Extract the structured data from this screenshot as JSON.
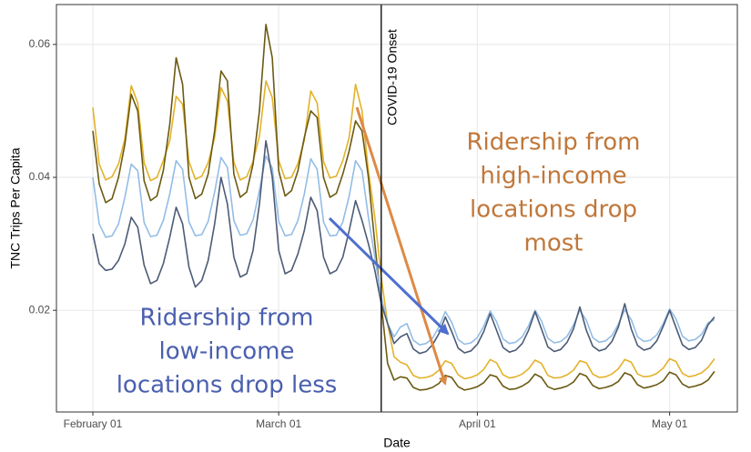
{
  "chart_data": {
    "type": "line",
    "x_label": "Date",
    "y_label": "TNC Trips Per Capita",
    "categories": [
      "February 01",
      "February 02",
      "February 03",
      "February 04",
      "February 05",
      "February 06",
      "February 07",
      "February 08",
      "February 09",
      "February 10",
      "February 11",
      "February 12",
      "February 13",
      "February 14",
      "February 15",
      "February 16",
      "February 17",
      "February 18",
      "February 19",
      "February 20",
      "February 21",
      "February 22",
      "February 23",
      "February 24",
      "February 25",
      "February 26",
      "February 27",
      "February 28",
      "February 29",
      "March 01",
      "March 02",
      "March 03",
      "March 04",
      "March 05",
      "March 06",
      "March 07",
      "March 08",
      "March 09",
      "March 10",
      "March 11",
      "March 12",
      "March 13",
      "March 14",
      "March 15",
      "March 16",
      "March 17",
      "March 18",
      "March 19",
      "March 20",
      "March 21",
      "March 22",
      "March 23",
      "March 24",
      "March 25",
      "March 26",
      "March 27",
      "March 28",
      "March 29",
      "March 30",
      "March 31",
      "April 01",
      "April 02",
      "April 03",
      "April 04",
      "April 05",
      "April 06",
      "April 07",
      "April 08",
      "April 09",
      "April 10",
      "April 11",
      "April 12",
      "April 13",
      "April 14",
      "April 15",
      "April 16",
      "April 17",
      "April 18",
      "April 19",
      "April 20",
      "April 21",
      "April 22",
      "April 23",
      "April 24",
      "April 25",
      "April 26",
      "April 27",
      "April 28",
      "April 29",
      "April 30",
      "May 01",
      "May 02",
      "May 03",
      "May 04",
      "May 05",
      "May 06",
      "May 07",
      "May 08"
    ],
    "xticks": [
      "February 01",
      "March 01",
      "April 01",
      "May 01"
    ],
    "ylim": [
      0.0047,
      0.066
    ],
    "yticks": [
      0.02,
      0.04,
      0.06
    ],
    "grid": true,
    "series": [
      {
        "color": "#e3b22a",
        "values": [
          0.0505,
          0.042,
          0.0396,
          0.0401,
          0.042,
          0.0458,
          0.0538,
          0.0512,
          0.0422,
          0.0395,
          0.04,
          0.0425,
          0.0455,
          0.0522,
          0.051,
          0.0424,
          0.0397,
          0.0402,
          0.0422,
          0.046,
          0.0535,
          0.0515,
          0.0423,
          0.0396,
          0.0401,
          0.0424,
          0.0462,
          0.0545,
          0.052,
          0.0425,
          0.0398,
          0.04,
          0.0421,
          0.0456,
          0.053,
          0.0512,
          0.0424,
          0.0399,
          0.0402,
          0.0425,
          0.046,
          0.054,
          0.05,
          0.041,
          0.034,
          0.025,
          0.018,
          0.013,
          0.0122,
          0.0118,
          0.0102,
          0.0098,
          0.0099,
          0.0102,
          0.011,
          0.0124,
          0.012,
          0.0103,
          0.0097,
          0.0099,
          0.0103,
          0.0111,
          0.0126,
          0.0121,
          0.0103,
          0.0098,
          0.01,
          0.0104,
          0.0112,
          0.0125,
          0.012,
          0.0102,
          0.0098,
          0.0099,
          0.0103,
          0.011,
          0.0124,
          0.0121,
          0.0104,
          0.0099,
          0.01,
          0.0104,
          0.0112,
          0.0126,
          0.0122,
          0.0104,
          0.01,
          0.0101,
          0.0105,
          0.0113,
          0.0127,
          0.0123,
          0.0105,
          0.01,
          0.0102,
          0.0106,
          0.0114,
          0.0127
        ]
      },
      {
        "color": "#6b5a12",
        "values": [
          0.047,
          0.039,
          0.0362,
          0.0368,
          0.04,
          0.045,
          0.0525,
          0.05,
          0.0395,
          0.0365,
          0.0372,
          0.041,
          0.048,
          0.058,
          0.054,
          0.04,
          0.0368,
          0.0375,
          0.0405,
          0.047,
          0.056,
          0.0545,
          0.0405,
          0.037,
          0.0378,
          0.042,
          0.05,
          0.063,
          0.058,
          0.041,
          0.0372,
          0.038,
          0.041,
          0.046,
          0.05,
          0.049,
          0.04,
          0.037,
          0.0376,
          0.0405,
          0.044,
          0.0485,
          0.047,
          0.04,
          0.03,
          0.021,
          0.012,
          0.0095,
          0.01,
          0.0098,
          0.0084,
          0.008,
          0.0081,
          0.0084,
          0.009,
          0.0102,
          0.0099,
          0.0085,
          0.008,
          0.0082,
          0.0085,
          0.0091,
          0.0103,
          0.01,
          0.0086,
          0.0081,
          0.0082,
          0.0086,
          0.0092,
          0.0104,
          0.0099,
          0.0085,
          0.0081,
          0.0083,
          0.0086,
          0.0092,
          0.0105,
          0.0101,
          0.0087,
          0.0082,
          0.0084,
          0.0087,
          0.0093,
          0.0106,
          0.0102,
          0.0088,
          0.0083,
          0.0085,
          0.0088,
          0.0094,
          0.0107,
          0.0103,
          0.0089,
          0.0084,
          0.0086,
          0.0089,
          0.0095,
          0.0108
        ]
      },
      {
        "color": "#93bde6",
        "values": [
          0.04,
          0.033,
          0.031,
          0.0312,
          0.033,
          0.037,
          0.042,
          0.041,
          0.0332,
          0.0311,
          0.0313,
          0.0335,
          0.0375,
          0.0425,
          0.0412,
          0.0333,
          0.0312,
          0.0314,
          0.0334,
          0.0378,
          0.043,
          0.0415,
          0.0335,
          0.0313,
          0.0315,
          0.0336,
          0.038,
          0.0432,
          0.0414,
          0.0334,
          0.0312,
          0.0314,
          0.0335,
          0.0375,
          0.0428,
          0.0412,
          0.0333,
          0.0312,
          0.0313,
          0.0333,
          0.0372,
          0.0425,
          0.041,
          0.034,
          0.028,
          0.022,
          0.018,
          0.016,
          0.0175,
          0.018,
          0.0155,
          0.0148,
          0.015,
          0.0158,
          0.0175,
          0.0198,
          0.0182,
          0.0156,
          0.0149,
          0.0151,
          0.0159,
          0.0176,
          0.0199,
          0.0183,
          0.0157,
          0.015,
          0.0152,
          0.016,
          0.0177,
          0.02,
          0.0184,
          0.0158,
          0.0151,
          0.0153,
          0.0161,
          0.0178,
          0.02,
          0.0185,
          0.0159,
          0.0152,
          0.0154,
          0.0162,
          0.0179,
          0.0201,
          0.0186,
          0.016,
          0.0153,
          0.0155,
          0.0163,
          0.018,
          0.0202,
          0.0187,
          0.0161,
          0.0154,
          0.0156,
          0.0164,
          0.0181,
          0.0186
        ]
      },
      {
        "color": "#4c5b76",
        "values": [
          0.0315,
          0.027,
          0.026,
          0.0262,
          0.0275,
          0.03,
          0.034,
          0.0325,
          0.0268,
          0.024,
          0.0245,
          0.027,
          0.031,
          0.0355,
          0.033,
          0.0265,
          0.0235,
          0.0245,
          0.0275,
          0.033,
          0.04,
          0.036,
          0.028,
          0.025,
          0.0255,
          0.029,
          0.036,
          0.0455,
          0.04,
          0.029,
          0.0255,
          0.026,
          0.0285,
          0.032,
          0.037,
          0.035,
          0.028,
          0.0255,
          0.026,
          0.028,
          0.032,
          0.0365,
          0.0335,
          0.03,
          0.026,
          0.021,
          0.018,
          0.015,
          0.016,
          0.0165,
          0.0142,
          0.0135,
          0.0138,
          0.0148,
          0.0165,
          0.019,
          0.0168,
          0.0143,
          0.0136,
          0.0139,
          0.0149,
          0.0168,
          0.0195,
          0.017,
          0.0144,
          0.0137,
          0.014,
          0.015,
          0.017,
          0.0198,
          0.0172,
          0.0145,
          0.0138,
          0.0141,
          0.0152,
          0.0172,
          0.0205,
          0.017,
          0.0146,
          0.0139,
          0.0142,
          0.0153,
          0.0175,
          0.021,
          0.0172,
          0.0147,
          0.014,
          0.0143,
          0.0154,
          0.0176,
          0.02,
          0.0174,
          0.0148,
          0.0141,
          0.0144,
          0.0155,
          0.0178,
          0.019
        ]
      }
    ],
    "vline": {
      "x": "March 17",
      "label": "COVID-19 Onset"
    },
    "annotations": [
      {
        "lines": [
          "Ridership from",
          "high-income",
          "locations drop",
          "most"
        ],
        "color": "#c0773a"
      },
      {
        "lines": [
          "Ridership from",
          "low-income",
          "locations drop less"
        ],
        "color": "#4a5fae"
      }
    ]
  }
}
